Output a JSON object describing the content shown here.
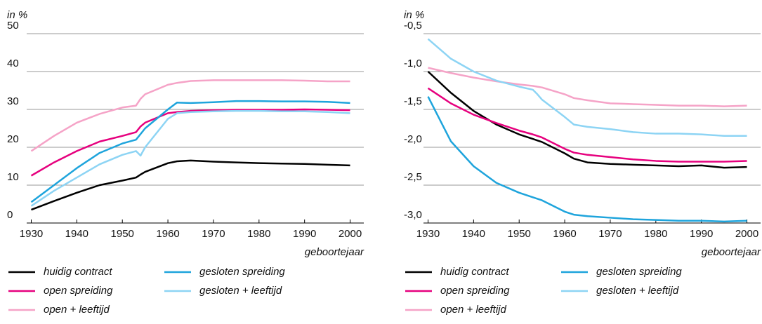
{
  "chart_data": [
    {
      "type": "line",
      "ylabel": "in %",
      "xlabel": "geboortejaar",
      "x": [
        1930,
        1935,
        1940,
        1945,
        1950,
        1953,
        1954,
        1955,
        1960,
        1962,
        1965,
        1970,
        1975,
        1980,
        1985,
        1990,
        1995,
        2000
      ],
      "xlim": [
        1929,
        2003
      ],
      "xticks": [
        1930,
        1940,
        1950,
        1960,
        1970,
        1980,
        1990,
        2000
      ],
      "ylim": [
        0,
        50
      ],
      "yticks": [
        0,
        10,
        20,
        30,
        40,
        50
      ],
      "grid": true,
      "series": [
        {
          "name": "huidig contract",
          "color": "#000000",
          "values": [
            3.5,
            5.8,
            8,
            10,
            11.2,
            12,
            12.8,
            13.5,
            15.8,
            16.3,
            16.5,
            16.2,
            16,
            15.8,
            15.7,
            15.6,
            15.4,
            15.2
          ]
        },
        {
          "name": "open spreiding",
          "color": "#e6007e",
          "values": [
            12.5,
            16,
            19,
            21.5,
            23,
            24,
            25.5,
            26.5,
            29,
            29.3,
            29.6,
            29.8,
            29.9,
            29.9,
            29.9,
            30,
            29.9,
            29.8
          ]
        },
        {
          "name": "open + leeftijd",
          "color": "#f5a3c7",
          "values": [
            19,
            23,
            26.5,
            28.8,
            30.5,
            31,
            32.8,
            34,
            36.5,
            37,
            37.5,
            37.7,
            37.7,
            37.7,
            37.7,
            37.6,
            37.4,
            37.4
          ]
        },
        {
          "name": "gesloten spreiding",
          "color": "#1ea4dc",
          "values": [
            5.5,
            10,
            14.5,
            18.5,
            21,
            22,
            23.5,
            25,
            30,
            31.8,
            31.7,
            31.9,
            32.2,
            32.2,
            32.1,
            32.1,
            32,
            31.7
          ]
        },
        {
          "name": "gesloten + leeftijd",
          "color": "#8dd4f4",
          "values": [
            4.5,
            8.5,
            12,
            15.5,
            18,
            19,
            17.8,
            20,
            27.5,
            29,
            29.3,
            29.5,
            29.6,
            29.6,
            29.5,
            29.5,
            29.3,
            29
          ]
        }
      ]
    },
    {
      "type": "line",
      "ylabel": "in %",
      "xlabel": "geboortejaar",
      "x": [
        1930,
        1935,
        1940,
        1945,
        1950,
        1953,
        1954,
        1955,
        1960,
        1962,
        1965,
        1970,
        1975,
        1980,
        1985,
        1990,
        1995,
        2000
      ],
      "xlim": [
        1929,
        2003
      ],
      "xticks": [
        1930,
        1940,
        1950,
        1960,
        1970,
        1980,
        1990,
        2000
      ],
      "ylim": [
        -3.0,
        -0.5
      ],
      "yticks": [
        {
          "value": -3.0,
          "label": "-3,0"
        },
        {
          "value": -2.5,
          "label": "-2,5"
        },
        {
          "value": -2.0,
          "label": "-2,0"
        },
        {
          "value": -1.5,
          "label": "-1,5"
        },
        {
          "value": -1.0,
          "label": "-1,0"
        },
        {
          "value": -0.5,
          "label": "-0,5"
        }
      ],
      "grid": true,
      "series": [
        {
          "name": "huidig contract",
          "color": "#000000",
          "values": [
            -1.0,
            -1.28,
            -1.52,
            -1.7,
            -1.83,
            -1.89,
            -1.91,
            -1.93,
            -2.08,
            -2.15,
            -2.2,
            -2.22,
            -2.23,
            -2.24,
            -2.25,
            -2.24,
            -2.27,
            -2.26
          ]
        },
        {
          "name": "open spreiding",
          "color": "#e6007e",
          "values": [
            -1.22,
            -1.42,
            -1.57,
            -1.68,
            -1.78,
            -1.83,
            -1.85,
            -1.87,
            -2.02,
            -2.07,
            -2.1,
            -2.13,
            -2.16,
            -2.18,
            -2.19,
            -2.19,
            -2.19,
            -2.18
          ]
        },
        {
          "name": "open + leeftijd",
          "color": "#f5a3c7",
          "values": [
            -0.95,
            -1.02,
            -1.08,
            -1.13,
            -1.17,
            -1.19,
            -1.2,
            -1.21,
            -1.3,
            -1.35,
            -1.38,
            -1.42,
            -1.43,
            -1.44,
            -1.45,
            -1.45,
            -1.46,
            -1.45
          ]
        },
        {
          "name": "gesloten spreiding",
          "color": "#1ea4dc",
          "values": [
            -1.33,
            -1.92,
            -2.25,
            -2.47,
            -2.6,
            -2.66,
            -2.68,
            -2.7,
            -2.85,
            -2.89,
            -2.91,
            -2.93,
            -2.95,
            -2.96,
            -2.97,
            -2.97,
            -2.98,
            -2.97
          ]
        },
        {
          "name": "gesloten + leeftijd",
          "color": "#8dd4f4",
          "values": [
            -0.57,
            -0.83,
            -1.0,
            -1.12,
            -1.2,
            -1.24,
            -1.3,
            -1.37,
            -1.6,
            -1.7,
            -1.73,
            -1.76,
            -1.8,
            -1.82,
            -1.82,
            -1.83,
            -1.85,
            -1.85
          ]
        }
      ]
    }
  ]
}
